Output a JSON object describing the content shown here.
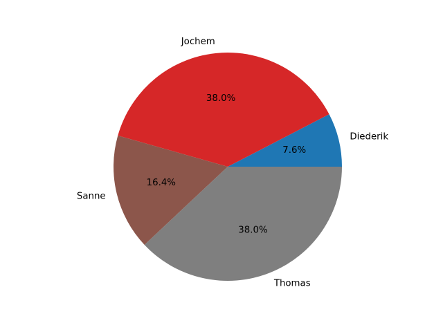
{
  "chart_data": {
    "type": "pie",
    "labels": [
      "Diederik",
      "Jochem",
      "Sanne",
      "Thomas"
    ],
    "values": [
      7.6,
      38.0,
      16.4,
      38.0
    ],
    "pct_labels": [
      "7.6%",
      "38.0%",
      "16.4%",
      "38.0%"
    ],
    "colors": [
      "#1f77b4",
      "#d62728",
      "#8c564b",
      "#7f7f7f"
    ],
    "start_angle_deg": 0,
    "direction": "counterclockwise"
  }
}
